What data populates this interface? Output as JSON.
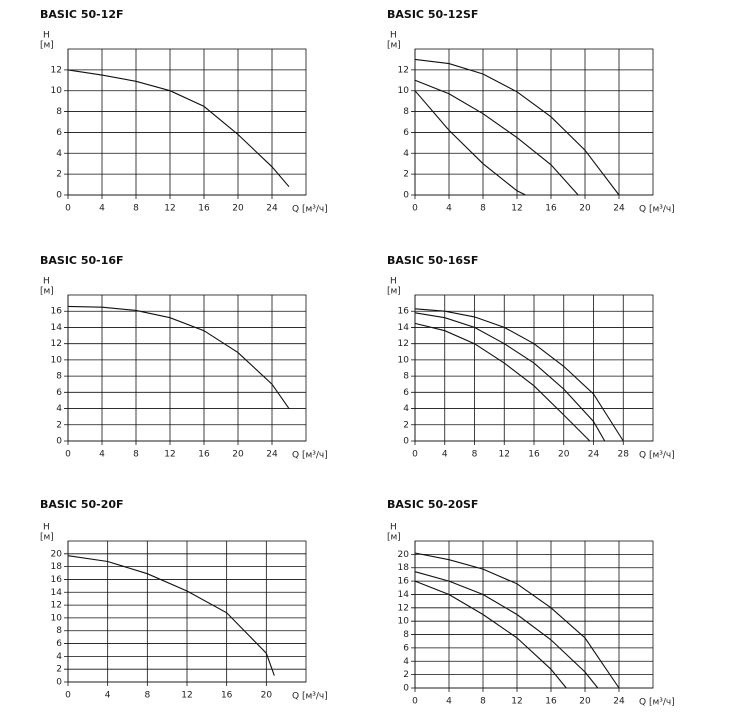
{
  "chart_data": [
    {
      "type": "line",
      "title": "BASIC 50-12F",
      "ylabel": "H",
      "yunit": "[м]",
      "xlabel": "Q [м³/ч]",
      "xlim": [
        0,
        28
      ],
      "xticks": [
        0,
        4,
        8,
        12,
        16,
        20,
        24
      ],
      "ylim": [
        0,
        14
      ],
      "yticks": [
        0,
        2,
        4,
        6,
        8,
        10,
        12
      ],
      "grid": true,
      "series": [
        {
          "color": "#111111",
          "x": [
            0,
            4,
            8,
            12,
            16,
            20,
            24,
            26
          ],
          "values": [
            12,
            11.5,
            10.9,
            10,
            8.5,
            5.8,
            2.7,
            0.8
          ]
        }
      ]
    },
    {
      "type": "line",
      "title": "BASIC 50-12SF",
      "ylabel": "H",
      "yunit": "[м]",
      "xlabel": "Q [м³/ч]",
      "xlim": [
        0,
        28
      ],
      "xticks": [
        0,
        4,
        8,
        12,
        16,
        20,
        24
      ],
      "ylim": [
        0,
        14
      ],
      "yticks": [
        0,
        2,
        4,
        6,
        8,
        10,
        12
      ],
      "grid": true,
      "series": [
        {
          "color": "#111111",
          "x": [
            0,
            4,
            8,
            12,
            16,
            20,
            24
          ],
          "values": [
            13,
            12.6,
            11.6,
            9.9,
            7.5,
            4.3,
            0
          ]
        },
        {
          "color": "#111111",
          "x": [
            0,
            4,
            8,
            12,
            16,
            19.2
          ],
          "values": [
            11,
            9.7,
            7.8,
            5.5,
            2.9,
            0
          ]
        },
        {
          "color": "#111111",
          "x": [
            0,
            4,
            8,
            12,
            13
          ],
          "values": [
            10,
            6.2,
            3,
            0.4,
            0
          ]
        }
      ]
    },
    {
      "type": "line",
      "title": "BASIC 50-16F",
      "ylabel": "H",
      "yunit": "[м]",
      "xlabel": "Q [м³/ч]",
      "xlim": [
        0,
        28
      ],
      "xticks": [
        0,
        4,
        8,
        12,
        16,
        20,
        24
      ],
      "ylim": [
        0,
        18
      ],
      "yticks": [
        0,
        2,
        4,
        6,
        8,
        10,
        12,
        14,
        16
      ],
      "grid": true,
      "series": [
        {
          "color": "#111111",
          "x": [
            0,
            4,
            8,
            12,
            16,
            20,
            24,
            26
          ],
          "values": [
            16.6,
            16.5,
            16.1,
            15.2,
            13.6,
            10.9,
            7,
            4
          ]
        }
      ]
    },
    {
      "type": "line",
      "title": "BASIC 50-16SF",
      "ylabel": "H",
      "yunit": "[м]",
      "xlabel": "Q [м³/ч]",
      "xlim": [
        0,
        32
      ],
      "xticks": [
        0,
        4,
        8,
        12,
        16,
        20,
        24,
        28
      ],
      "ylim": [
        0,
        18
      ],
      "yticks": [
        0,
        2,
        4,
        6,
        8,
        10,
        12,
        14,
        16
      ],
      "grid": true,
      "series": [
        {
          "color": "#111111",
          "x": [
            0,
            4,
            8,
            12,
            16,
            20,
            24,
            28
          ],
          "values": [
            16.3,
            16,
            15.3,
            14,
            12,
            9.2,
            5.8,
            0
          ]
        },
        {
          "color": "#111111",
          "x": [
            0,
            4,
            8,
            12,
            16,
            20,
            24,
            25.5
          ],
          "values": [
            15.8,
            15.2,
            14,
            12,
            9.6,
            6.4,
            2.4,
            0
          ]
        },
        {
          "color": "#111111",
          "x": [
            0,
            4,
            8,
            12,
            16,
            20,
            23.5
          ],
          "values": [
            14.5,
            13.6,
            12,
            9.6,
            6.8,
            3.2,
            0
          ]
        }
      ]
    },
    {
      "type": "line",
      "title": "BASIC 50-20F",
      "ylabel": "H",
      "yunit": "[м]",
      "xlabel": "Q [м³/ч]",
      "xlim": [
        0,
        24
      ],
      "xticks": [
        0,
        4,
        8,
        12,
        16,
        20
      ],
      "ylim": [
        0,
        22
      ],
      "yticks": [
        0,
        2,
        4,
        6,
        8,
        10,
        12,
        14,
        16,
        18,
        20
      ],
      "grid": true,
      "series": [
        {
          "color": "#111111",
          "x": [
            0,
            4,
            8,
            12,
            16,
            20,
            20.8
          ],
          "values": [
            19.7,
            18.8,
            16.9,
            14.2,
            10.8,
            4.5,
            1
          ]
        }
      ]
    },
    {
      "type": "line",
      "title": "BASIC 50-20SF",
      "ylabel": "H",
      "yunit": "[м]",
      "xlabel": "Q [м³/ч]",
      "xlim": [
        0,
        28
      ],
      "xticks": [
        0,
        4,
        8,
        12,
        16,
        20,
        24
      ],
      "ylim": [
        0,
        22
      ],
      "yticks": [
        0,
        2,
        4,
        6,
        8,
        10,
        12,
        14,
        16,
        18,
        20
      ],
      "grid": true,
      "series": [
        {
          "color": "#111111",
          "x": [
            0,
            4,
            8,
            12,
            16,
            20,
            24
          ],
          "values": [
            20.2,
            19.2,
            17.8,
            15.6,
            12,
            7.5,
            0
          ]
        },
        {
          "color": "#111111",
          "x": [
            0,
            4,
            8,
            12,
            16,
            20,
            21.5
          ],
          "values": [
            17.4,
            16,
            14,
            11,
            7.2,
            2.4,
            0
          ]
        },
        {
          "color": "#111111",
          "x": [
            0,
            4,
            8,
            12,
            16,
            17.8
          ],
          "values": [
            16,
            14,
            11,
            7.5,
            2.8,
            0
          ]
        }
      ]
    }
  ]
}
